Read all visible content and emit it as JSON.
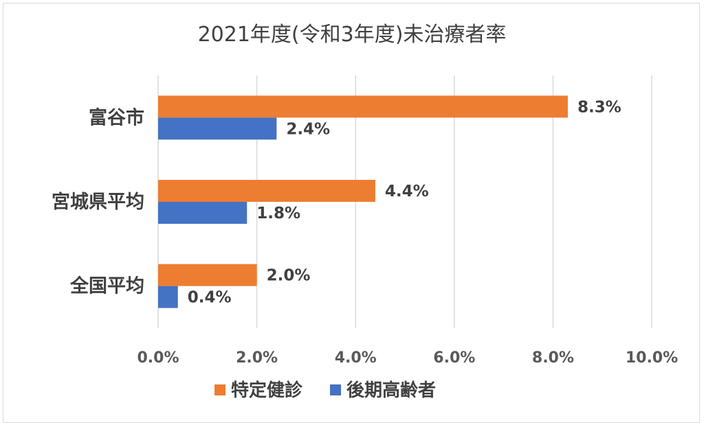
{
  "chart_data": {
    "type": "bar",
    "orientation": "horizontal",
    "title": "2021年度(令和3年度)未治療者率",
    "categories": [
      "富谷市",
      "宮城県平均",
      "全国平均"
    ],
    "series": [
      {
        "name": "特定健診",
        "color": "#ED7D31",
        "values": [
          8.3,
          4.4,
          2.0
        ],
        "labels": [
          "8.3%",
          "4.4%",
          "2.0%"
        ]
      },
      {
        "name": "後期高齢者",
        "color": "#4472C4",
        "values": [
          2.4,
          1.8,
          0.4
        ],
        "labels": [
          "2.4%",
          "1.8%",
          "0.4%"
        ]
      }
    ],
    "xlim": [
      0,
      10
    ],
    "xticks": [
      0,
      2,
      4,
      6,
      8,
      10
    ],
    "xtick_labels": [
      "0.0%",
      "2.0%",
      "4.0%",
      "6.0%",
      "8.0%",
      "10.0%"
    ],
    "grid": true,
    "legend_position": "bottom"
  }
}
